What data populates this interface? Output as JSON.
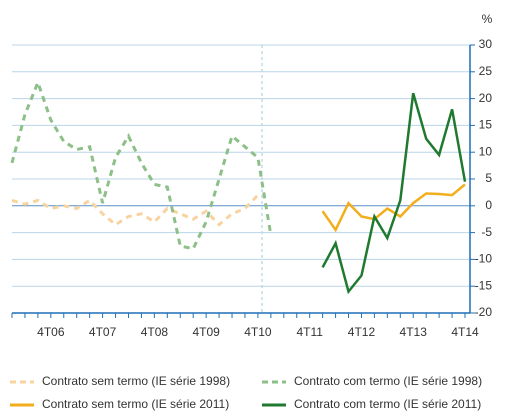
{
  "chart_data": {
    "type": "line",
    "y_label": "%",
    "categories": [
      null,
      null,
      null,
      "4T06",
      null,
      null,
      null,
      "4T07",
      null,
      null,
      null,
      "4T08",
      null,
      null,
      null,
      "4T09",
      null,
      null,
      null,
      "4T10",
      null,
      null,
      null,
      "4T11",
      null,
      null,
      null,
      "4T12",
      null,
      null,
      null,
      "4T13",
      null,
      null,
      null,
      "4T14"
    ],
    "series": [
      {
        "name": "Contrato sem termo (IE série 1998)",
        "color": "#f8d39f",
        "dashed": true,
        "values": [
          1,
          0.3,
          1,
          -0.5,
          0,
          -0.5,
          1,
          -1.5,
          -3.5,
          -2,
          -1.5,
          -3,
          -0.5,
          -1.5,
          -2.5,
          -1,
          -3.5,
          -1.5,
          -0.5,
          2,
          null,
          null,
          null,
          null,
          null,
          null,
          null,
          null,
          null,
          null,
          null,
          null,
          null,
          null,
          null,
          null
        ]
      },
      {
        "name": "Contrato com termo (IE série 1998)",
        "color": "#8dbf88",
        "dashed": true,
        "values": [
          8,
          17,
          23,
          16,
          12,
          10.5,
          11,
          0.5,
          9,
          13,
          8,
          4,
          3.5,
          -7.5,
          -8,
          -3,
          5,
          13,
          11,
          9,
          -5.5,
          null,
          null,
          null,
          null,
          null,
          null,
          null,
          null,
          null,
          null,
          null,
          null,
          null,
          null,
          null
        ]
      },
      {
        "name": "Contrato sem termo (IE série 2011)",
        "color": "#f2ae1c",
        "dashed": false,
        "values": [
          null,
          null,
          null,
          null,
          null,
          null,
          null,
          null,
          null,
          null,
          null,
          null,
          null,
          null,
          null,
          null,
          null,
          null,
          null,
          null,
          null,
          null,
          null,
          null,
          -1,
          -4.5,
          0.5,
          -2,
          -2.5,
          -0.5,
          -2,
          0.5,
          2.3,
          2.2,
          2,
          4
        ]
      },
      {
        "name": "Contrato com termo (IE série 2011)",
        "color": "#1f7a2f",
        "dashed": false,
        "values": [
          null,
          null,
          null,
          null,
          null,
          null,
          null,
          null,
          null,
          null,
          null,
          null,
          null,
          null,
          null,
          null,
          null,
          null,
          null,
          null,
          null,
          null,
          null,
          null,
          -11.5,
          -7,
          -16,
          -13,
          -2,
          -6,
          1,
          21,
          12.5,
          9.5,
          18,
          4.5
        ]
      }
    ],
    "ylim": [
      -20,
      30
    ],
    "yticks": [
      -20,
      -15,
      -10,
      -5,
      0,
      5,
      10,
      15,
      20,
      25,
      30
    ],
    "grid": true
  }
}
